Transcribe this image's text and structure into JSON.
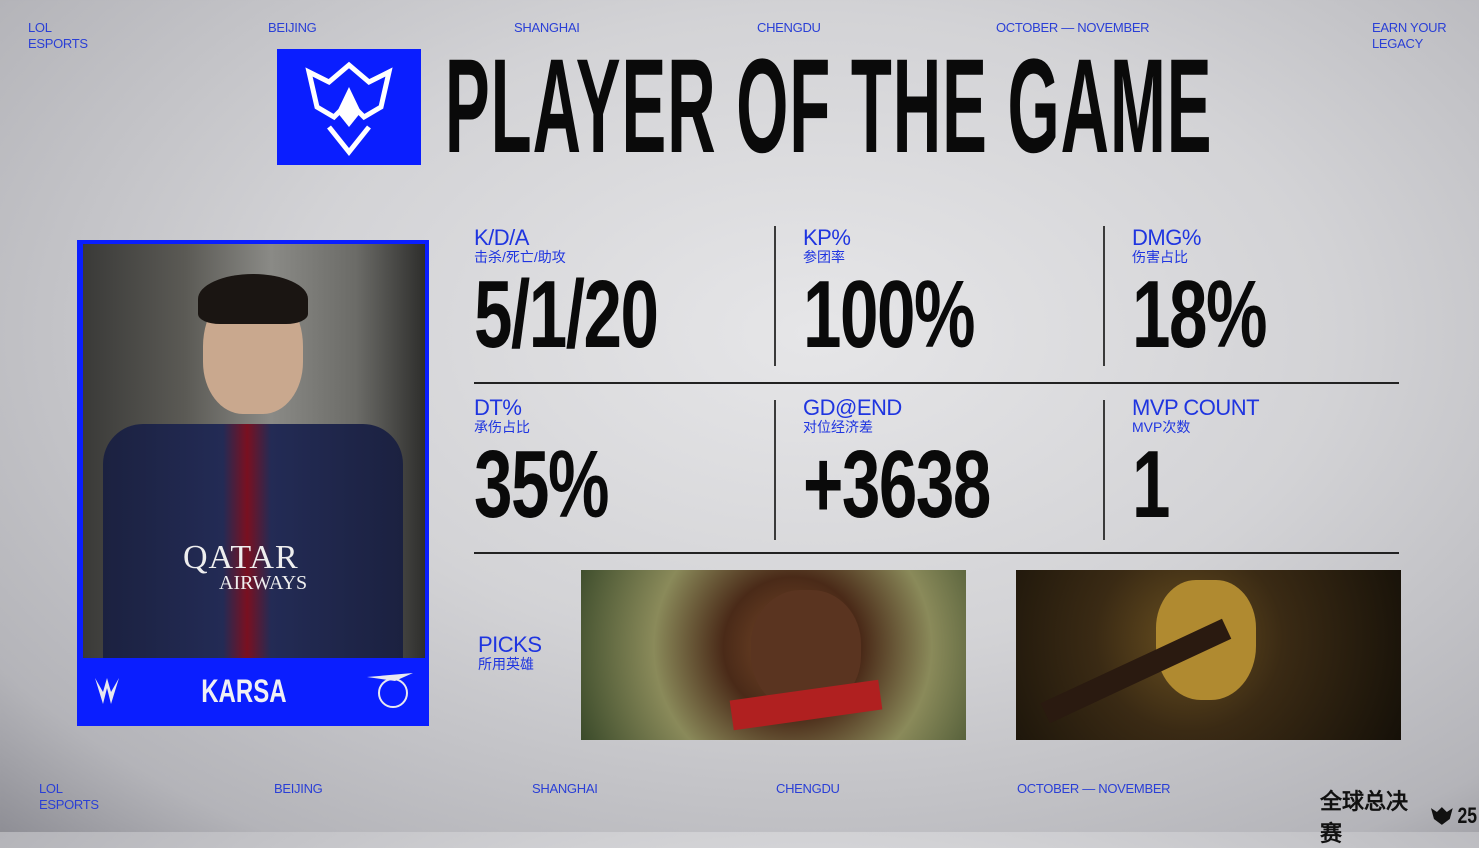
{
  "nav_top": {
    "lol_esports": [
      "LOL",
      "ESPORTS"
    ],
    "city1": "BEIJING",
    "city2": "SHANGHAI",
    "city3": "CHENGDU",
    "dates": "OCTOBER — NOVEMBER",
    "tagline": [
      "EARN YOUR",
      "LEGACY"
    ]
  },
  "nav_bottom": {
    "lol_esports": [
      "LOL",
      "ESPORTS"
    ],
    "city1": "BEIJING",
    "city2": "SHANGHAI",
    "city3": "CHENGDU",
    "dates": "OCTOBER — NOVEMBER",
    "brand": "全球总决赛",
    "brand_year": "25"
  },
  "title": "PLAYER OF THE GAME",
  "player": {
    "name": "KARSA",
    "jersey_sponsor": [
      "QATAR",
      "AIRWAYS"
    ]
  },
  "stats": [
    {
      "label": "K/D/A",
      "sub": "击杀/死亡/助攻",
      "value": "5/1/20"
    },
    {
      "label": "KP%",
      "sub": "参团率",
      "value": "100%"
    },
    {
      "label": "DMG%",
      "sub": "伤害占比",
      "value": "18%"
    },
    {
      "label": "DT%",
      "sub": "承伤占比",
      "value": "35%"
    },
    {
      "label": "GD@END",
      "sub": "对位经济差",
      "value": "+3638"
    },
    {
      "label": "MVP COUNT",
      "sub": "MVP次数",
      "value": "1"
    }
  ],
  "picks": {
    "label": "PICKS",
    "sub": "所用英雄",
    "champions": [
      "wukong-splash",
      "jarvan-splash"
    ]
  },
  "colors": {
    "accent": "#0a1eff",
    "text_blue": "#1f35e0"
  }
}
